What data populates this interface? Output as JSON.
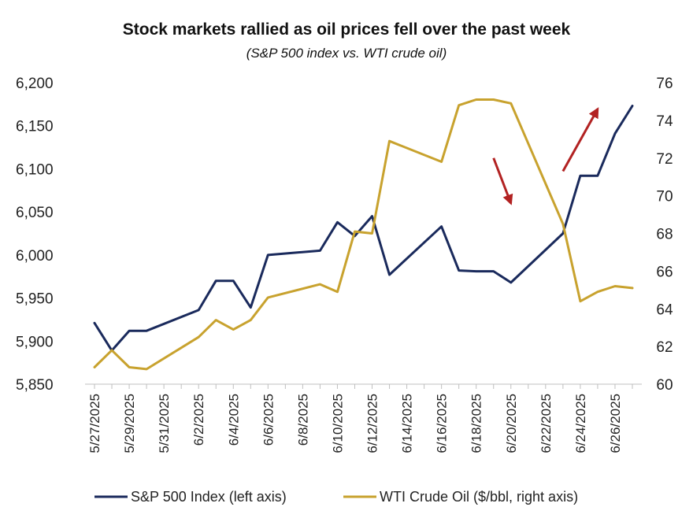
{
  "chart_data": {
    "type": "line",
    "title": "Stock markets rallied as oil prices fell over the past week",
    "subtitle": "(S&P 500 index vs. WTI crude oil)",
    "y_left": {
      "ticks": [
        "5,850",
        "5,900",
        "5,950",
        "6,000",
        "6,050",
        "6,100",
        "6,150",
        "6,200"
      ],
      "ylim": [
        5850,
        6200
      ]
    },
    "y_right": {
      "ticks": [
        "60",
        "62",
        "64",
        "66",
        "68",
        "70",
        "72",
        "74",
        "76"
      ],
      "ylim": [
        60,
        76
      ]
    },
    "x_tick_labels": [
      "5/27/2025",
      "5/29/2025",
      "5/31/2025",
      "6/2/2025",
      "6/4/2025",
      "6/6/2025",
      "6/8/2025",
      "6/10/2025",
      "6/12/2025",
      "6/14/2025",
      "6/16/2025",
      "6/18/2025",
      "6/20/2025",
      "6/22/2025",
      "6/24/2025",
      "6/26/2025"
    ],
    "x_start": "2025-05-27",
    "x_end": "2025-06-27",
    "series": [
      {
        "name": "S&P 500 Index (left axis)",
        "axis": "left",
        "color": "#1a2a5c",
        "points": [
          [
            "2025-05-27",
            5921
          ],
          [
            "2025-05-28",
            5889
          ],
          [
            "2025-05-29",
            5912
          ],
          [
            "2025-05-30",
            5912
          ],
          [
            "2025-06-02",
            5936
          ],
          [
            "2025-06-03",
            5970
          ],
          [
            "2025-06-04",
            5970
          ],
          [
            "2025-06-05",
            5939
          ],
          [
            "2025-06-06",
            6000
          ],
          [
            "2025-06-09",
            6005
          ],
          [
            "2025-06-10",
            6038
          ],
          [
            "2025-06-11",
            6022
          ],
          [
            "2025-06-12",
            6045
          ],
          [
            "2025-06-13",
            5977
          ],
          [
            "2025-06-16",
            6033
          ],
          [
            "2025-06-17",
            5982
          ],
          [
            "2025-06-18",
            5981
          ],
          [
            "2025-06-19",
            5981
          ],
          [
            "2025-06-20",
            5968
          ],
          [
            "2025-06-23",
            6025
          ],
          [
            "2025-06-24",
            6092
          ],
          [
            "2025-06-25",
            6092
          ],
          [
            "2025-06-26",
            6141
          ],
          [
            "2025-06-27",
            6173
          ]
        ]
      },
      {
        "name": "WTI Crude Oil ($/bbl, right axis)",
        "axis": "right",
        "color": "#c8a22e",
        "points": [
          [
            "2025-05-27",
            60.9
          ],
          [
            "2025-05-28",
            61.8
          ],
          [
            "2025-05-29",
            60.9
          ],
          [
            "2025-05-30",
            60.8
          ],
          [
            "2025-06-02",
            62.5
          ],
          [
            "2025-06-03",
            63.4
          ],
          [
            "2025-06-04",
            62.9
          ],
          [
            "2025-06-05",
            63.4
          ],
          [
            "2025-06-06",
            64.6
          ],
          [
            "2025-06-09",
            65.3
          ],
          [
            "2025-06-10",
            64.9
          ],
          [
            "2025-06-11",
            68.1
          ],
          [
            "2025-06-12",
            68.0
          ],
          [
            "2025-06-13",
            72.9
          ],
          [
            "2025-06-16",
            71.8
          ],
          [
            "2025-06-17",
            74.8
          ],
          [
            "2025-06-18",
            75.1
          ],
          [
            "2025-06-19",
            75.1
          ],
          [
            "2025-06-20",
            74.9
          ],
          [
            "2025-06-23",
            68.5
          ],
          [
            "2025-06-24",
            64.4
          ],
          [
            "2025-06-25",
            64.9
          ],
          [
            "2025-06-26",
            65.2
          ],
          [
            "2025-06-27",
            65.1
          ]
        ]
      }
    ],
    "annotations": [
      {
        "kind": "arrow",
        "color": "#b22222",
        "from": [
          "2025-06-19",
          72.0
        ],
        "to": [
          "2025-06-20",
          69.6
        ],
        "axis": "right"
      },
      {
        "kind": "arrow",
        "color": "#b22222",
        "from": [
          "2025-06-23",
          71.3
        ],
        "to": [
          "2025-06-25",
          74.6
        ],
        "axis": "right"
      }
    ],
    "legend": {
      "placement": "bottom"
    },
    "grid": false
  }
}
